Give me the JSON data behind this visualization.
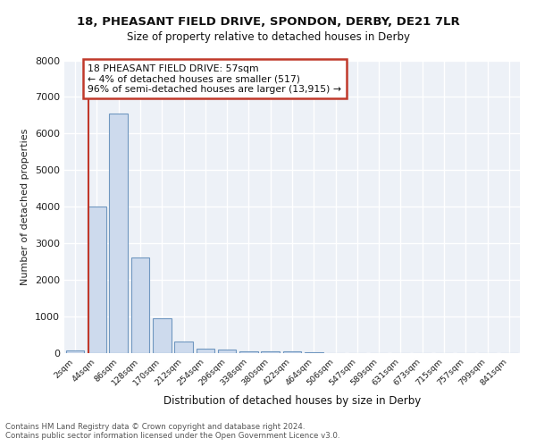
{
  "title1": "18, PHEASANT FIELD DRIVE, SPONDON, DERBY, DE21 7LR",
  "title2": "Size of property relative to detached houses in Derby",
  "xlabel": "Distribution of detached houses by size in Derby",
  "ylabel": "Number of detached properties",
  "bar_labels": [
    "2sqm",
    "44sqm",
    "86sqm",
    "128sqm",
    "170sqm",
    "212sqm",
    "254sqm",
    "296sqm",
    "338sqm",
    "380sqm",
    "422sqm",
    "464sqm",
    "506sqm",
    "547sqm",
    "589sqm",
    "631sqm",
    "673sqm",
    "715sqm",
    "757sqm",
    "799sqm",
    "841sqm"
  ],
  "bar_values": [
    70,
    4000,
    6550,
    2620,
    950,
    310,
    130,
    100,
    60,
    55,
    45,
    20,
    10,
    5,
    5,
    5,
    5,
    5,
    5,
    5,
    5
  ],
  "bar_color": "#cddaed",
  "bar_edge_color": "#7097c0",
  "vline_color": "#c0392b",
  "annotation_text": "18 PHEASANT FIELD DRIVE: 57sqm\n← 4% of detached houses are smaller (517)\n96% of semi-detached houses are larger (13,915) →",
  "annotation_box_color": "#c0392b",
  "ylim": [
    0,
    8000
  ],
  "yticks": [
    0,
    1000,
    2000,
    3000,
    4000,
    5000,
    6000,
    7000,
    8000
  ],
  "bg_color": "#edf1f7",
  "grid_color": "#ffffff",
  "footer1": "Contains HM Land Registry data © Crown copyright and database right 2024.",
  "footer2": "Contains public sector information licensed under the Open Government Licence v3.0."
}
